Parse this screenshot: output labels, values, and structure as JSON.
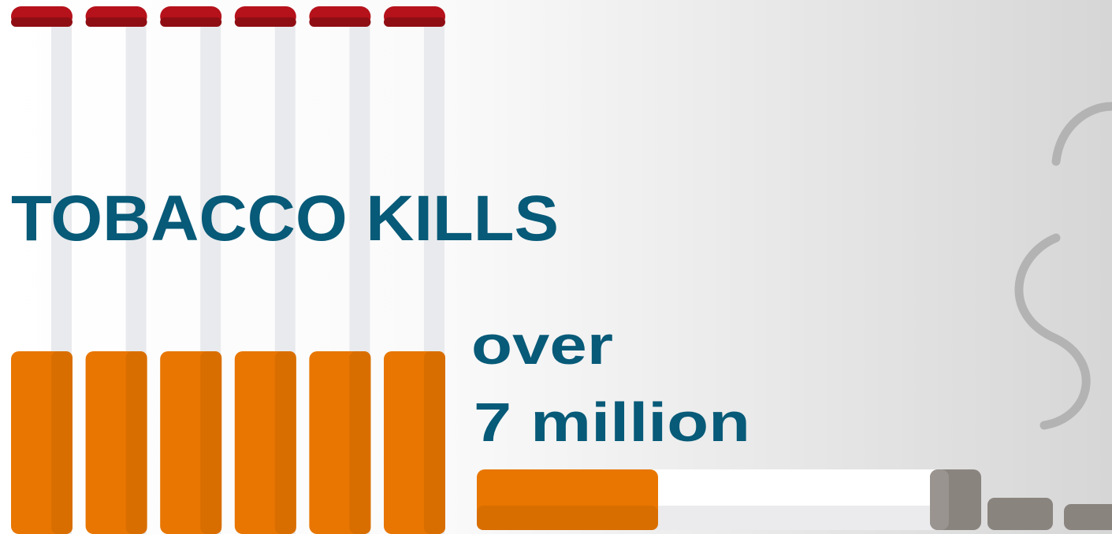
{
  "title": "TOBACCO KILLS",
  "subtitle_line1": "over",
  "subtitle_line2": "7 million"
}
